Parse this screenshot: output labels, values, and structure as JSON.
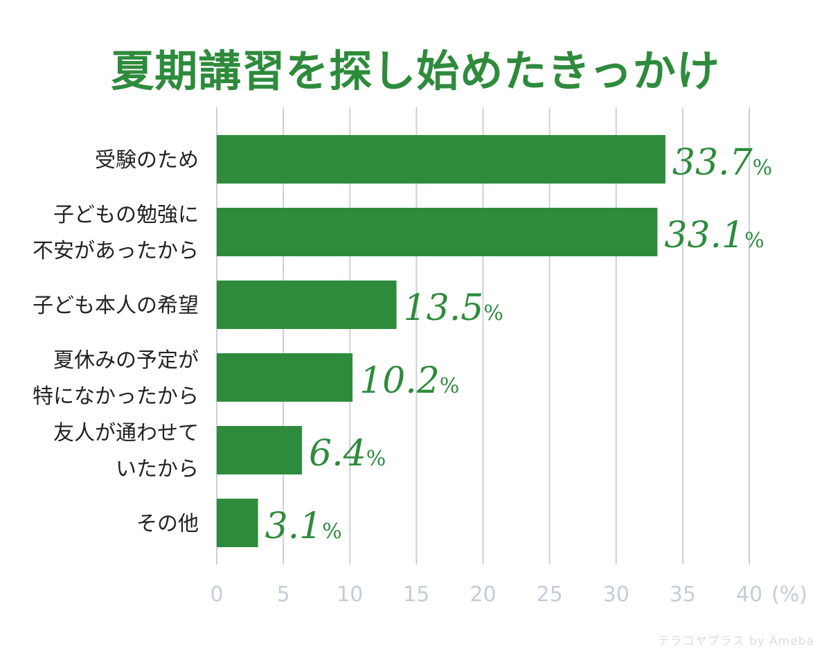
{
  "chart_data": {
    "type": "bar",
    "orientation": "horizontal",
    "title": "夏期講習を探し始めたきっかけ",
    "categories": [
      [
        "受験のため"
      ],
      [
        "子どもの勉強に",
        "不安があったから"
      ],
      [
        "子ども本人の希望"
      ],
      [
        "夏休みの予定が",
        "特になかったから"
      ],
      [
        "友人が通わせて",
        "いたから"
      ],
      [
        "その他"
      ]
    ],
    "values": [
      33.7,
      33.1,
      13.5,
      10.2,
      6.4,
      3.1
    ],
    "value_labels": [
      "33.7",
      "33.1",
      "13.5",
      "10.2",
      "6.4",
      "3.1"
    ],
    "value_suffix": "%",
    "x_ticks": [
      "0",
      "5",
      "10",
      "15",
      "20",
      "25",
      "30",
      "35",
      "40"
    ],
    "x_unit": "(%)",
    "xlim": [
      0,
      40
    ],
    "grid": true,
    "bar_color": "#2e8b3c",
    "grid_color": "#c8d0dc",
    "label_color": "#2e8b3c"
  },
  "watermark": "テラコヤプラス by Ameba"
}
